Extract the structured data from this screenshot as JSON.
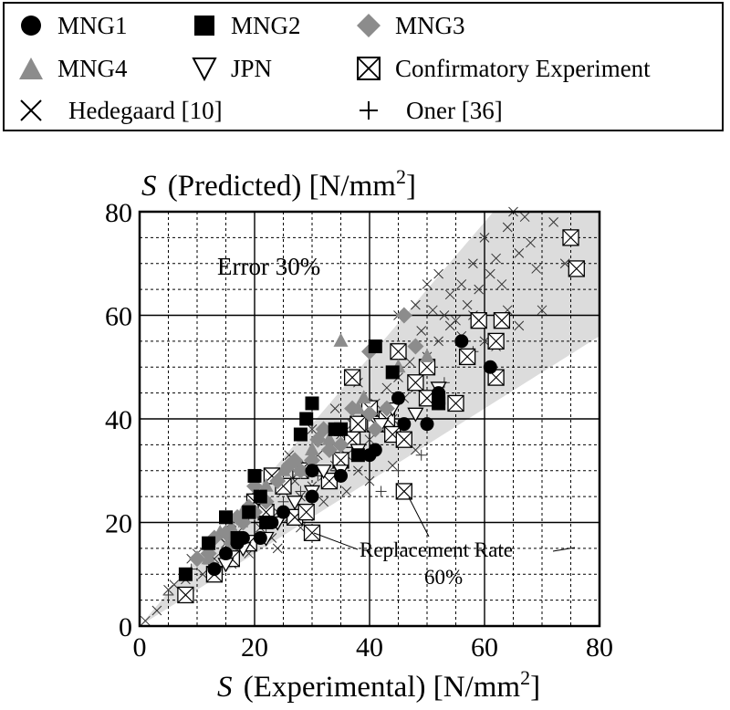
{
  "legend": {
    "items": [
      {
        "label": "MNG1",
        "icon": "filled-circle-icon"
      },
      {
        "label": "MNG2",
        "icon": "filled-square-icon"
      },
      {
        "label": "MNG3",
        "icon": "gray-diamond-icon"
      },
      {
        "label": "MNG4",
        "icon": "gray-triangle-icon"
      },
      {
        "label": "JPN",
        "icon": "open-down-triangle-icon"
      },
      {
        "label": "Confirmatory Experiment",
        "icon": "boxed-x-icon"
      },
      {
        "label": "Hedegaard [10]",
        "icon": "x-cross-icon"
      },
      {
        "label": "Oner [36]",
        "icon": "plus-icon"
      }
    ]
  },
  "chart_data": {
    "type": "scatter",
    "title": "",
    "xlabel": {
      "symbol": "S",
      "text": "(Experimental) [N/mm",
      "sup": "2",
      "close": "]"
    },
    "ylabel": {
      "symbol": "S",
      "text": "(Predicted) [N/mm",
      "sup": "2",
      "close": "]"
    },
    "xlim": [
      0,
      80
    ],
    "ylim": [
      0,
      80
    ],
    "major_ticks": [
      0,
      20,
      40,
      60,
      80
    ],
    "minor_step": 5,
    "grid": true,
    "error_band_percent": 30,
    "annotations": {
      "error_band": "Error 30%",
      "replacement_rate_line1": "Replacement Rate",
      "replacement_rate_line2": "60%"
    },
    "colors": {
      "gray": "#8c8c8c",
      "band": "#dcdcdc",
      "black": "#000000"
    },
    "series": [
      {
        "name": "MNG1",
        "marker": "circle",
        "points": [
          [
            13,
            11
          ],
          [
            15,
            14
          ],
          [
            17,
            16
          ],
          [
            18,
            17
          ],
          [
            21,
            17
          ],
          [
            23,
            20
          ],
          [
            25,
            22
          ],
          [
            30,
            25
          ],
          [
            30,
            30
          ],
          [
            35,
            29
          ],
          [
            40,
            33
          ],
          [
            41,
            34
          ],
          [
            46,
            39
          ],
          [
            50,
            39
          ],
          [
            45,
            44
          ],
          [
            52,
            43
          ],
          [
            52,
            45
          ],
          [
            56,
            55
          ],
          [
            61,
            50
          ]
        ]
      },
      {
        "name": "MNG2",
        "marker": "square",
        "points": [
          [
            8,
            10
          ],
          [
            12,
            16
          ],
          [
            15,
            21
          ],
          [
            17,
            17
          ],
          [
            19,
            22
          ],
          [
            20,
            29
          ],
          [
            21,
            25
          ],
          [
            22,
            20
          ],
          [
            28,
            37
          ],
          [
            29,
            40
          ],
          [
            30,
            43
          ],
          [
            34,
            38
          ],
          [
            35,
            38
          ],
          [
            38,
            33
          ],
          [
            41,
            54
          ],
          [
            44,
            49
          ],
          [
            52,
            43
          ],
          [
            52,
            44
          ]
        ]
      },
      {
        "name": "MNG3",
        "marker": "diamond",
        "points": [
          [
            10,
            13
          ],
          [
            12,
            14
          ],
          [
            13,
            17
          ],
          [
            15,
            18
          ],
          [
            16,
            16
          ],
          [
            17,
            21
          ],
          [
            18,
            20
          ],
          [
            19,
            23
          ],
          [
            20,
            22
          ],
          [
            20,
            27
          ],
          [
            22,
            24
          ],
          [
            24,
            28
          ],
          [
            26,
            31
          ],
          [
            27,
            32
          ],
          [
            28,
            30
          ],
          [
            30,
            32
          ],
          [
            31,
            36
          ],
          [
            32,
            38
          ],
          [
            33,
            34
          ],
          [
            35,
            35
          ],
          [
            37,
            42
          ],
          [
            40,
            41
          ],
          [
            41,
            38
          ],
          [
            43,
            42
          ],
          [
            40,
            53
          ],
          [
            46,
            60
          ],
          [
            48,
            54
          ]
        ]
      },
      {
        "name": "MNG4",
        "marker": "triangle",
        "points": [
          [
            12,
            13
          ],
          [
            14,
            18
          ],
          [
            16,
            19
          ],
          [
            18,
            22
          ],
          [
            22,
            27
          ],
          [
            25,
            30
          ],
          [
            28,
            30
          ],
          [
            30,
            34
          ],
          [
            33,
            36
          ],
          [
            35,
            55
          ],
          [
            38,
            42
          ],
          [
            39,
            44
          ],
          [
            45,
            50
          ],
          [
            50,
            52
          ]
        ]
      },
      {
        "name": "JPN",
        "marker": "down-triangle",
        "points": [
          [
            15,
            12
          ],
          [
            18,
            15
          ],
          [
            22,
            17
          ],
          [
            24,
            20
          ],
          [
            27,
            24
          ],
          [
            30,
            26
          ],
          [
            32,
            30
          ],
          [
            35,
            30
          ],
          [
            38,
            34
          ],
          [
            42,
            39
          ],
          [
            44,
            42
          ],
          [
            48,
            41
          ],
          [
            52,
            46
          ]
        ]
      },
      {
        "name": "Confirmatory Experiment",
        "marker": "boxed-x",
        "points": [
          [
            8,
            6
          ],
          [
            13,
            10
          ],
          [
            16,
            13
          ],
          [
            19,
            16
          ],
          [
            20,
            24
          ],
          [
            22,
            22
          ],
          [
            23,
            29
          ],
          [
            25,
            27
          ],
          [
            27,
            21
          ],
          [
            28,
            30
          ],
          [
            29,
            22
          ],
          [
            30,
            18
          ],
          [
            33,
            28
          ],
          [
            35,
            32
          ],
          [
            37,
            36
          ],
          [
            37,
            48
          ],
          [
            38,
            39
          ],
          [
            40,
            42
          ],
          [
            41,
            39
          ],
          [
            43,
            40
          ],
          [
            44,
            37
          ],
          [
            45,
            53
          ],
          [
            46,
            36
          ],
          [
            46,
            26
          ],
          [
            48,
            47
          ],
          [
            50,
            44
          ],
          [
            50,
            50
          ],
          [
            55,
            43
          ],
          [
            57,
            52
          ],
          [
            59,
            59
          ],
          [
            62,
            48
          ],
          [
            62,
            55
          ],
          [
            63,
            59
          ],
          [
            75,
            75
          ],
          [
            76,
            69
          ]
        ]
      },
      {
        "name": "Hedegaard [10]",
        "marker": "x",
        "points": [
          [
            1,
            1
          ],
          [
            3,
            3
          ],
          [
            5,
            7
          ],
          [
            6,
            8
          ],
          [
            8,
            9
          ],
          [
            9,
            13
          ],
          [
            10,
            14
          ],
          [
            11,
            10
          ],
          [
            12,
            15
          ],
          [
            13,
            13
          ],
          [
            14,
            17
          ],
          [
            15,
            16
          ],
          [
            16,
            12
          ],
          [
            17,
            18
          ],
          [
            18,
            20
          ],
          [
            19,
            14
          ],
          [
            20,
            23
          ],
          [
            21,
            19
          ],
          [
            22,
            24
          ],
          [
            23,
            17
          ],
          [
            24,
            22
          ],
          [
            25,
            26
          ],
          [
            26,
            21
          ],
          [
            27,
            28
          ],
          [
            28,
            25
          ],
          [
            29,
            31
          ],
          [
            30,
            27
          ],
          [
            31,
            33
          ],
          [
            32,
            29
          ],
          [
            33,
            35
          ],
          [
            34,
            31
          ],
          [
            35,
            37
          ],
          [
            36,
            33
          ],
          [
            37,
            39
          ],
          [
            38,
            30
          ],
          [
            39,
            41
          ],
          [
            40,
            36
          ],
          [
            41,
            43
          ],
          [
            42,
            38
          ],
          [
            43,
            46
          ],
          [
            44,
            40
          ],
          [
            45,
            48
          ],
          [
            46,
            44
          ],
          [
            47,
            51
          ],
          [
            48,
            46
          ],
          [
            49,
            57
          ],
          [
            50,
            52
          ],
          [
            51,
            61
          ],
          [
            52,
            55
          ],
          [
            53,
            60
          ],
          [
            54,
            64
          ],
          [
            55,
            59
          ],
          [
            56,
            66
          ],
          [
            57,
            62
          ],
          [
            58,
            70
          ],
          [
            59,
            65
          ],
          [
            60,
            75
          ],
          [
            61,
            68
          ],
          [
            62,
            71
          ],
          [
            63,
            66
          ],
          [
            64,
            77
          ],
          [
            65,
            80
          ],
          [
            66,
            72
          ],
          [
            67,
            79
          ],
          [
            68,
            74
          ],
          [
            69,
            69
          ],
          [
            70,
            61
          ],
          [
            72,
            78
          ],
          [
            74,
            70
          ],
          [
            45,
            60
          ],
          [
            48,
            62
          ],
          [
            50,
            66
          ],
          [
            52,
            68
          ],
          [
            54,
            58
          ],
          [
            56,
            56
          ],
          [
            58,
            60
          ],
          [
            60,
            55
          ],
          [
            62,
            54
          ],
          [
            64,
            61
          ],
          [
            66,
            58
          ],
          [
            24,
            15
          ],
          [
            28,
            19
          ],
          [
            32,
            24
          ],
          [
            36,
            26
          ],
          [
            40,
            28
          ],
          [
            44,
            31
          ],
          [
            48,
            34
          ],
          [
            16,
            20
          ],
          [
            20,
            26
          ],
          [
            26,
            33
          ],
          [
            30,
            38
          ],
          [
            34,
            42
          ],
          [
            38,
            47
          ]
        ]
      },
      {
        "name": "Oner [36]",
        "marker": "plus",
        "points": [
          [
            5,
            6
          ],
          [
            9,
            11
          ],
          [
            12,
            12
          ],
          [
            16,
            17
          ],
          [
            19,
            21
          ],
          [
            22,
            18
          ],
          [
            25,
            24
          ],
          [
            28,
            26
          ],
          [
            31,
            29
          ],
          [
            34,
            30
          ],
          [
            37,
            35
          ],
          [
            40,
            38
          ],
          [
            43,
            41
          ],
          [
            46,
            36
          ],
          [
            49,
            33
          ],
          [
            45,
            30
          ],
          [
            42,
            26
          ],
          [
            50,
            44
          ],
          [
            53,
            47
          ],
          [
            58,
            53
          ]
        ]
      }
    ]
  }
}
